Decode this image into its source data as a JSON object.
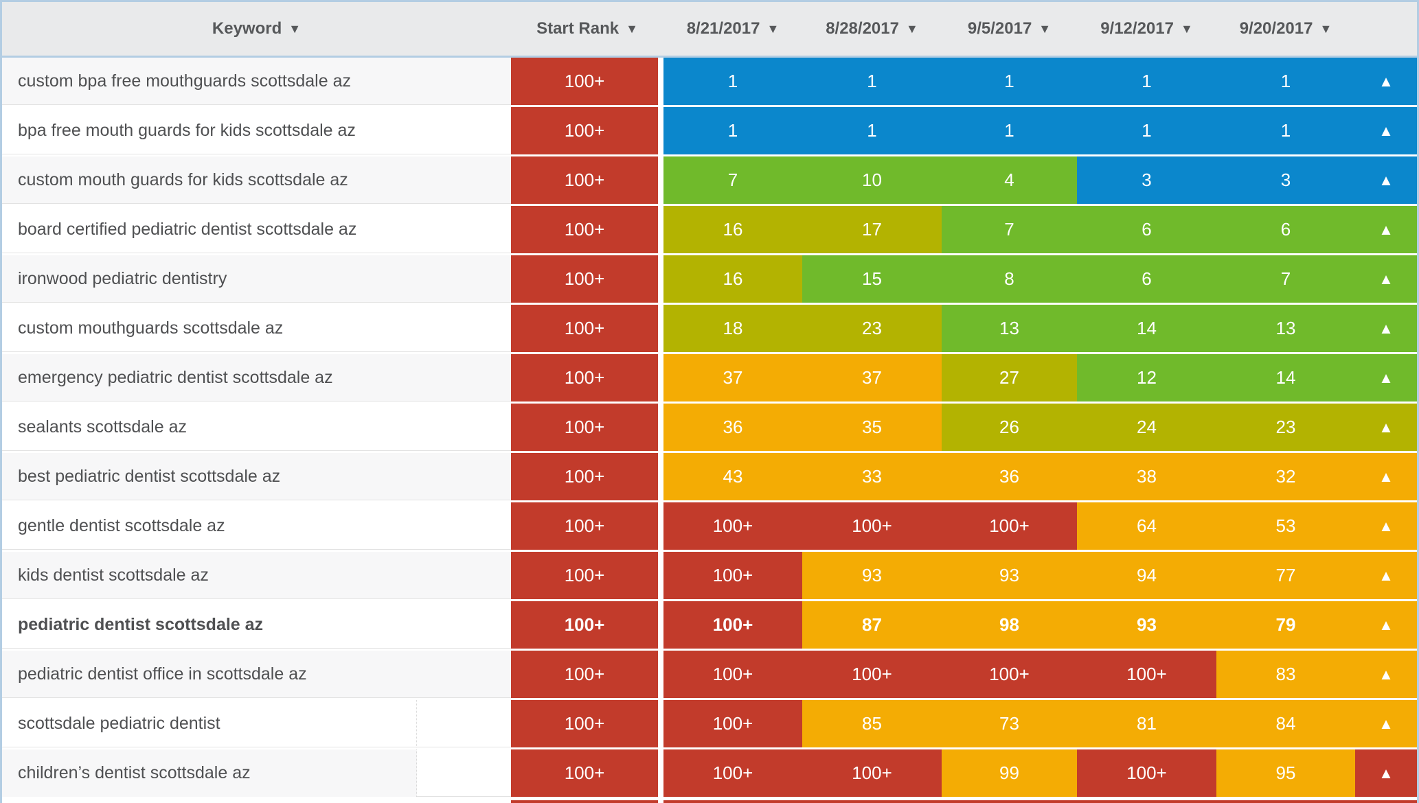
{
  "table": {
    "sort_icon": "▼",
    "trend_up_icon": "▲",
    "colors": {
      "blue": "#0b87cc",
      "green": "#70ba2b",
      "olive": "#b3b301",
      "orange": "#f4ac04",
      "red": "#c23b2b"
    },
    "columns": [
      {
        "label": "Keyword"
      },
      {
        "label": "Start Rank"
      },
      {
        "label": "8/21/2017"
      },
      {
        "label": "8/28/2017"
      },
      {
        "label": "9/5/2017"
      },
      {
        "label": "9/12/2017"
      },
      {
        "label": "9/20/2017"
      },
      {
        "label": ""
      }
    ],
    "rows": [
      {
        "keyword": "custom bpa free mouthguards scottsdale az",
        "bold": false,
        "short_stripe": false,
        "start_rank": {
          "value": "100+",
          "color": "red"
        },
        "cells": [
          {
            "value": "1",
            "color": "blue"
          },
          {
            "value": "1",
            "color": "blue"
          },
          {
            "value": "1",
            "color": "blue"
          },
          {
            "value": "1",
            "color": "blue"
          },
          {
            "value": "1",
            "color": "blue"
          }
        ],
        "trend": {
          "direction": "up",
          "color": "blue"
        }
      },
      {
        "keyword": "bpa free mouth guards for kids scottsdale az",
        "bold": false,
        "short_stripe": false,
        "start_rank": {
          "value": "100+",
          "color": "red"
        },
        "cells": [
          {
            "value": "1",
            "color": "blue"
          },
          {
            "value": "1",
            "color": "blue"
          },
          {
            "value": "1",
            "color": "blue"
          },
          {
            "value": "1",
            "color": "blue"
          },
          {
            "value": "1",
            "color": "blue"
          }
        ],
        "trend": {
          "direction": "up",
          "color": "blue"
        }
      },
      {
        "keyword": "custom mouth guards for kids scottsdale az",
        "bold": false,
        "short_stripe": false,
        "start_rank": {
          "value": "100+",
          "color": "red"
        },
        "cells": [
          {
            "value": "7",
            "color": "green"
          },
          {
            "value": "10",
            "color": "green"
          },
          {
            "value": "4",
            "color": "green"
          },
          {
            "value": "3",
            "color": "blue"
          },
          {
            "value": "3",
            "color": "blue"
          }
        ],
        "trend": {
          "direction": "up",
          "color": "blue"
        }
      },
      {
        "keyword": "board certified pediatric dentist scottsdale az",
        "bold": false,
        "short_stripe": false,
        "start_rank": {
          "value": "100+",
          "color": "red"
        },
        "cells": [
          {
            "value": "16",
            "color": "olive"
          },
          {
            "value": "17",
            "color": "olive"
          },
          {
            "value": "7",
            "color": "green"
          },
          {
            "value": "6",
            "color": "green"
          },
          {
            "value": "6",
            "color": "green"
          }
        ],
        "trend": {
          "direction": "up",
          "color": "green"
        }
      },
      {
        "keyword": "ironwood pediatric dentistry",
        "bold": false,
        "short_stripe": false,
        "start_rank": {
          "value": "100+",
          "color": "red"
        },
        "cells": [
          {
            "value": "16",
            "color": "olive"
          },
          {
            "value": "15",
            "color": "green"
          },
          {
            "value": "8",
            "color": "green"
          },
          {
            "value": "6",
            "color": "green"
          },
          {
            "value": "7",
            "color": "green"
          }
        ],
        "trend": {
          "direction": "up",
          "color": "green"
        }
      },
      {
        "keyword": "custom mouthguards scottsdale az",
        "bold": false,
        "short_stripe": false,
        "start_rank": {
          "value": "100+",
          "color": "red"
        },
        "cells": [
          {
            "value": "18",
            "color": "olive"
          },
          {
            "value": "23",
            "color": "olive"
          },
          {
            "value": "13",
            "color": "green"
          },
          {
            "value": "14",
            "color": "green"
          },
          {
            "value": "13",
            "color": "green"
          }
        ],
        "trend": {
          "direction": "up",
          "color": "green"
        }
      },
      {
        "keyword": "emergency pediatric dentist scottsdale az",
        "bold": false,
        "short_stripe": false,
        "start_rank": {
          "value": "100+",
          "color": "red"
        },
        "cells": [
          {
            "value": "37",
            "color": "orange"
          },
          {
            "value": "37",
            "color": "orange"
          },
          {
            "value": "27",
            "color": "olive"
          },
          {
            "value": "12",
            "color": "green"
          },
          {
            "value": "14",
            "color": "green"
          }
        ],
        "trend": {
          "direction": "up",
          "color": "green"
        }
      },
      {
        "keyword": "sealants scottsdale az",
        "bold": false,
        "short_stripe": false,
        "start_rank": {
          "value": "100+",
          "color": "red"
        },
        "cells": [
          {
            "value": "36",
            "color": "orange"
          },
          {
            "value": "35",
            "color": "orange"
          },
          {
            "value": "26",
            "color": "olive"
          },
          {
            "value": "24",
            "color": "olive"
          },
          {
            "value": "23",
            "color": "olive"
          }
        ],
        "trend": {
          "direction": "up",
          "color": "olive"
        }
      },
      {
        "keyword": "best pediatric dentist scottsdale az",
        "bold": false,
        "short_stripe": false,
        "start_rank": {
          "value": "100+",
          "color": "red"
        },
        "cells": [
          {
            "value": "43",
            "color": "orange"
          },
          {
            "value": "33",
            "color": "orange"
          },
          {
            "value": "36",
            "color": "orange"
          },
          {
            "value": "38",
            "color": "orange"
          },
          {
            "value": "32",
            "color": "orange"
          }
        ],
        "trend": {
          "direction": "up",
          "color": "orange"
        }
      },
      {
        "keyword": "gentle dentist scottsdale az",
        "bold": false,
        "short_stripe": false,
        "start_rank": {
          "value": "100+",
          "color": "red"
        },
        "cells": [
          {
            "value": "100+",
            "color": "red"
          },
          {
            "value": "100+",
            "color": "red"
          },
          {
            "value": "100+",
            "color": "red"
          },
          {
            "value": "64",
            "color": "orange"
          },
          {
            "value": "53",
            "color": "orange"
          }
        ],
        "trend": {
          "direction": "up",
          "color": "orange"
        }
      },
      {
        "keyword": "kids dentist scottsdale az",
        "bold": false,
        "short_stripe": false,
        "start_rank": {
          "value": "100+",
          "color": "red"
        },
        "cells": [
          {
            "value": "100+",
            "color": "red"
          },
          {
            "value": "93",
            "color": "orange"
          },
          {
            "value": "93",
            "color": "orange"
          },
          {
            "value": "94",
            "color": "orange"
          },
          {
            "value": "77",
            "color": "orange"
          }
        ],
        "trend": {
          "direction": "up",
          "color": "orange"
        }
      },
      {
        "keyword": "pediatric dentist scottsdale az",
        "bold": true,
        "short_stripe": false,
        "start_rank": {
          "value": "100+",
          "color": "red"
        },
        "cells": [
          {
            "value": "100+",
            "color": "red"
          },
          {
            "value": "87",
            "color": "orange"
          },
          {
            "value": "98",
            "color": "orange"
          },
          {
            "value": "93",
            "color": "orange"
          },
          {
            "value": "79",
            "color": "orange"
          }
        ],
        "trend": {
          "direction": "up",
          "color": "orange"
        }
      },
      {
        "keyword": "pediatric dentist office in scottsdale az",
        "bold": false,
        "short_stripe": false,
        "start_rank": {
          "value": "100+",
          "color": "red"
        },
        "cells": [
          {
            "value": "100+",
            "color": "red"
          },
          {
            "value": "100+",
            "color": "red"
          },
          {
            "value": "100+",
            "color": "red"
          },
          {
            "value": "100+",
            "color": "red"
          },
          {
            "value": "83",
            "color": "orange"
          }
        ],
        "trend": {
          "direction": "up",
          "color": "orange"
        }
      },
      {
        "keyword": "scottsdale pediatric dentist",
        "bold": false,
        "short_stripe": true,
        "start_rank": {
          "value": "100+",
          "color": "red"
        },
        "cells": [
          {
            "value": "100+",
            "color": "red"
          },
          {
            "value": "85",
            "color": "orange"
          },
          {
            "value": "73",
            "color": "orange"
          },
          {
            "value": "81",
            "color": "orange"
          },
          {
            "value": "84",
            "color": "orange"
          }
        ],
        "trend": {
          "direction": "up",
          "color": "orange"
        }
      },
      {
        "keyword": "children’s dentist scottsdale az",
        "bold": false,
        "short_stripe": true,
        "start_rank": {
          "value": "100+",
          "color": "red"
        },
        "cells": [
          {
            "value": "100+",
            "color": "red"
          },
          {
            "value": "100+",
            "color": "red"
          },
          {
            "value": "99",
            "color": "orange"
          },
          {
            "value": "100+",
            "color": "red"
          },
          {
            "value": "95",
            "color": "orange"
          }
        ],
        "trend": {
          "direction": "up",
          "color": "red"
        }
      },
      {
        "keyword": "",
        "bold": false,
        "short_stripe": false,
        "partial": true,
        "start_rank": {
          "value": "",
          "color": "red"
        },
        "cells": [
          {
            "value": "",
            "color": "red"
          },
          {
            "value": "",
            "color": "red"
          },
          {
            "value": "",
            "color": "red"
          },
          {
            "value": "",
            "color": "red"
          },
          {
            "value": "",
            "color": "red"
          }
        ],
        "trend": {
          "direction": "up",
          "color": "red"
        }
      }
    ]
  }
}
